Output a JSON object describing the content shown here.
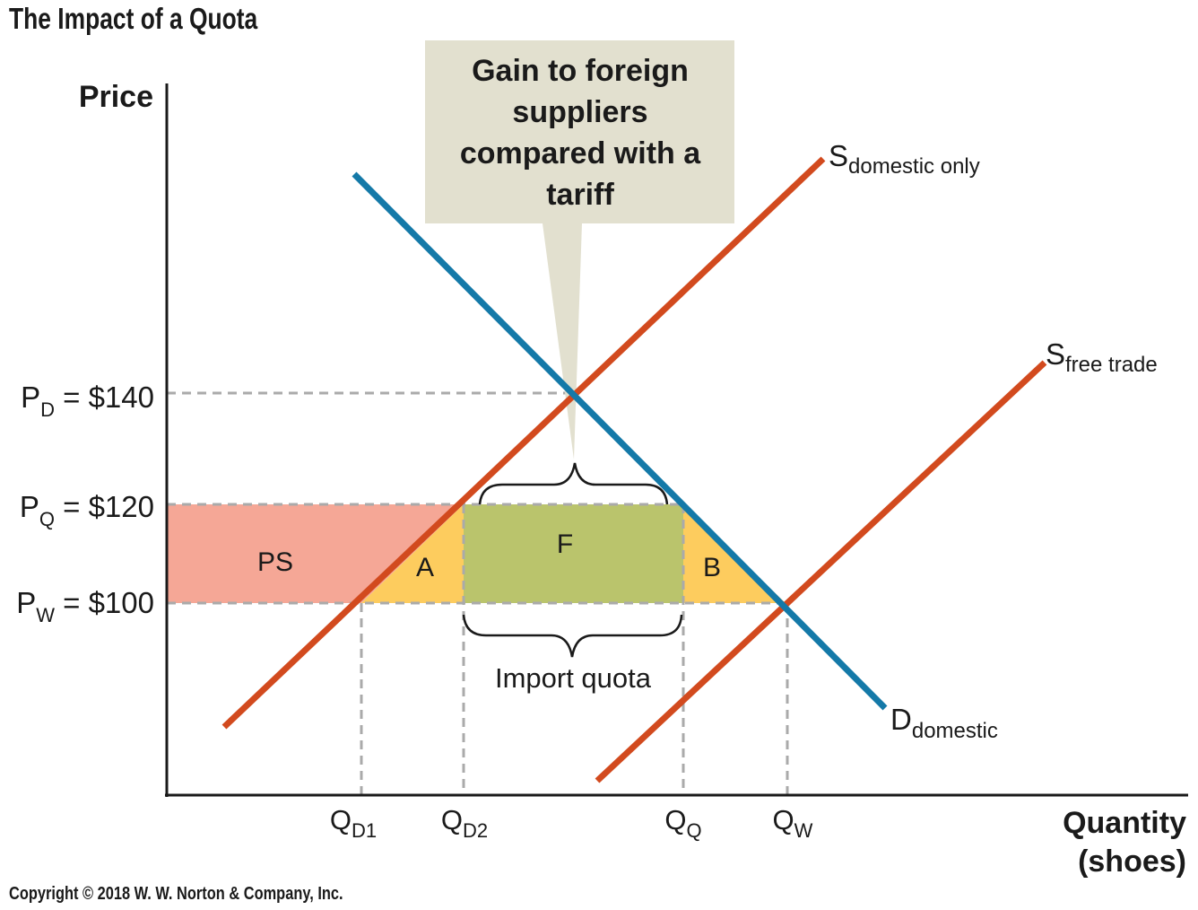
{
  "title": "The Impact of a Quota",
  "copyright": "Copyright © 2018 W. W. Norton & Company, Inc.",
  "colors": {
    "demand": "#1479a8",
    "supply": "#d24a1e",
    "producer_surplus": "#f5a796",
    "deadweight": "#fdcc5e",
    "foreign_gain": "#bac46c",
    "callout": "#e2e0cf",
    "guide": "#aaaaaa"
  },
  "axes": {
    "y_label": "Price",
    "x_label_line1": "Quantity",
    "x_label_line2": "(shoes)"
  },
  "price_levels": {
    "pd": {
      "symbol": "P",
      "sub": "D",
      "value": "$140"
    },
    "pq": {
      "symbol": "P",
      "sub": "Q",
      "value": "$120"
    },
    "pw": {
      "symbol": "P",
      "sub": "W",
      "value": "$100"
    }
  },
  "quantity_levels": {
    "qd1": {
      "symbol": "Q",
      "sub": "D1"
    },
    "qd2": {
      "symbol": "Q",
      "sub": "D2"
    },
    "qq": {
      "symbol": "Q",
      "sub": "Q"
    },
    "qw": {
      "symbol": "Q",
      "sub": "W"
    }
  },
  "curves": {
    "s_domestic": {
      "symbol": "S",
      "sub": "domestic only"
    },
    "s_free_trade": {
      "symbol": "S",
      "sub": "free trade"
    },
    "d_domestic": {
      "symbol": "D",
      "sub": "domestic"
    }
  },
  "areas": {
    "ps": "PS",
    "a": "A",
    "f": "F",
    "b": "B"
  },
  "callout": {
    "lines": [
      "Gain to foreign",
      "suppliers",
      "compared with a",
      "tariff"
    ]
  },
  "import_quota_label": "Import quota"
}
